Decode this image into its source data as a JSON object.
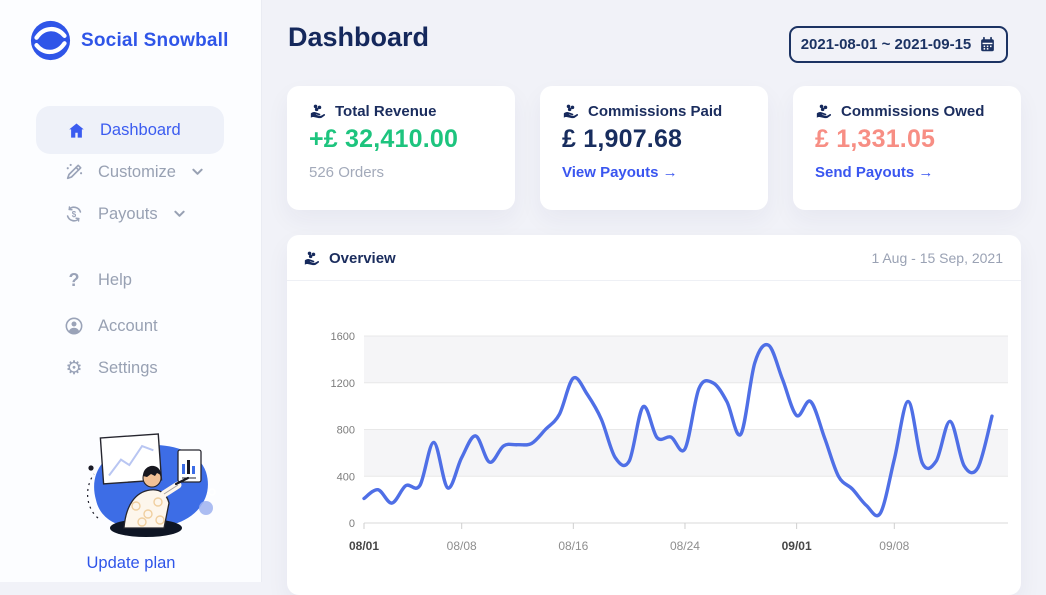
{
  "sidebar": {
    "brand": {
      "name": "Social Snowball"
    },
    "nav": [
      {
        "label": "Dashboard",
        "icon": "home",
        "active": true
      },
      {
        "label": "Customize",
        "icon": "design-pen",
        "expandable": true
      },
      {
        "label": "Payouts",
        "icon": "refresh-dollar",
        "expandable": true
      },
      {
        "label": "Help",
        "icon": "question-mark"
      },
      {
        "label": "Account",
        "icon": "person"
      },
      {
        "label": "Settings",
        "icon": "gear"
      }
    ],
    "update_plan_label": "Update plan"
  },
  "header": {
    "title": "Dashboard",
    "date_range": "2021-08-01 ~ 2021-09-15"
  },
  "stat_cards": [
    {
      "icon": "coins-in-hand",
      "title": "Total Revenue",
      "amount": "+£ 32,410.00",
      "amount_color": "#1dc47e",
      "subtext": "526 Orders"
    },
    {
      "icon": "coins-in-hand",
      "title": "Commissions Paid",
      "amount": "£ 1,907.68",
      "amount_color": "#182d5e",
      "link_label": "View Payouts →"
    },
    {
      "icon": "coins-in-hand",
      "title": "Commissions Owed",
      "amount": "£ 1,331.05",
      "amount_color": "#f78e84",
      "link_label": "Send Payouts →"
    }
  ],
  "overview": {
    "icon": "coins-in-hand",
    "title": "Overview",
    "range_label": "1 Aug - 15 Sep, 2021"
  },
  "chart_data": {
    "type": "line",
    "title": "Overview",
    "x": [
      "08/01",
      "08/02",
      "08/03",
      "08/04",
      "08/05",
      "08/06",
      "08/07",
      "08/08",
      "08/09",
      "08/10",
      "08/11",
      "08/12",
      "08/13",
      "08/14",
      "08/15",
      "08/16",
      "08/17",
      "08/18",
      "08/19",
      "08/20",
      "08/21",
      "08/22",
      "08/23",
      "08/24",
      "08/25",
      "08/26",
      "08/27",
      "08/28",
      "08/29",
      "08/30",
      "08/31",
      "09/01",
      "09/02",
      "09/03",
      "09/04",
      "09/05",
      "09/06",
      "09/07",
      "09/08",
      "09/09",
      "09/10",
      "09/11",
      "09/12",
      "09/13",
      "09/14",
      "09/15"
    ],
    "values": [
      210,
      285,
      170,
      320,
      320,
      690,
      300,
      560,
      745,
      520,
      660,
      670,
      680,
      800,
      930,
      1240,
      1100,
      890,
      560,
      530,
      995,
      730,
      735,
      635,
      1150,
      1200,
      1040,
      760,
      1370,
      1520,
      1225,
      920,
      1040,
      730,
      400,
      290,
      150,
      85,
      545,
      1040,
      515,
      530,
      870,
      490,
      475,
      915
    ],
    "ylim": [
      0,
      1600
    ],
    "yticks": [
      0,
      400,
      800,
      1200,
      1600
    ],
    "xticks": [
      {
        "index": 0,
        "label": "08/01",
        "bold": true
      },
      {
        "index": 7,
        "label": "08/08",
        "bold": false
      },
      {
        "index": 15,
        "label": "08/16",
        "bold": false
      },
      {
        "index": 23,
        "label": "08/24",
        "bold": false
      },
      {
        "index": 31,
        "label": "09/01",
        "bold": true
      },
      {
        "index": 38,
        "label": "09/08",
        "bold": false
      }
    ],
    "bands": [
      [
        400,
        800
      ],
      [
        1200,
        1600
      ]
    ],
    "band_color": "#f5f5f7",
    "grid_color": "#e8e8e8",
    "axis_color": "#d8d8d8",
    "line_color": "#4f6fe6",
    "legend": "none",
    "grid": "horizontal"
  }
}
